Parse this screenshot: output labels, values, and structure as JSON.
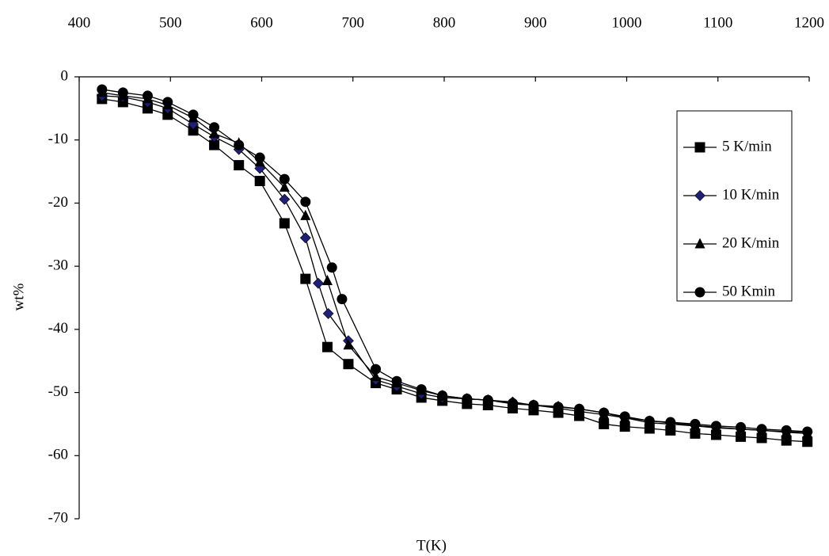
{
  "chart_data": {
    "type": "line",
    "x_label": "T(K)",
    "y_label": "wt%",
    "xlim": [
      400,
      1200
    ],
    "xticks": [
      400,
      500,
      600,
      700,
      800,
      900,
      1000,
      1100,
      1200
    ],
    "ylim": [
      -70,
      0
    ],
    "yticks": [
      0,
      -10,
      -20,
      -30,
      -40,
      -50,
      -60,
      -70
    ],
    "legend": "right",
    "series": [
      {
        "name": "5 K/min",
        "marker": "square",
        "color": "#000000",
        "x": [
          425,
          448,
          475,
          497,
          525,
          548,
          575,
          598,
          625,
          648,
          672,
          695,
          725,
          748,
          775,
          798,
          825,
          848,
          875,
          898,
          925,
          948,
          975,
          998,
          1025,
          1048,
          1075,
          1098,
          1125,
          1148,
          1175,
          1198
        ],
        "values": [
          -3.5,
          -4,
          -5,
          -6,
          -8.5,
          -10.8,
          -14,
          -16.5,
          -23.2,
          -32,
          -42.8,
          -45.5,
          -48.5,
          -49.5,
          -50.8,
          -51.3,
          -51.8,
          -52,
          -52.5,
          -52.8,
          -53.2,
          -53.7,
          -55,
          -55.4,
          -55.7,
          -56,
          -56.5,
          -56.7,
          -57,
          -57.2,
          -57.6,
          -57.8
        ]
      },
      {
        "name": "10 K/min",
        "marker": "diamond",
        "color": "#1f1f7a",
        "x": [
          425,
          448,
          475,
          497,
          525,
          548,
          575,
          598,
          625,
          648,
          662,
          673,
          695,
          725,
          748,
          775,
          798,
          825,
          848,
          875,
          898,
          925,
          948,
          975,
          998,
          1025,
          1048,
          1075,
          1098,
          1125,
          1148,
          1175,
          1198
        ],
        "values": [
          -3,
          -3.2,
          -4,
          -5,
          -7.5,
          -9.5,
          -11.5,
          -14.5,
          -19.4,
          -25.5,
          -32.7,
          -37.5,
          -41.8,
          -48,
          -49,
          -50.2,
          -50.8,
          -51,
          -51.2,
          -51.5,
          -52,
          -52.2,
          -52.6,
          -53.2,
          -54,
          -54.5,
          -54.8,
          -55.2,
          -55.5,
          -55.8,
          -56,
          -56.2,
          -56.3
        ]
      },
      {
        "name": "20 K/min",
        "marker": "triangle",
        "color": "#000000",
        "x": [
          425,
          448,
          475,
          497,
          525,
          548,
          575,
          598,
          625,
          648,
          672,
          695,
          725,
          748,
          775,
          798,
          825,
          848,
          875,
          898,
          925,
          948,
          975,
          998,
          1025,
          1048,
          1075,
          1098,
          1125,
          1148,
          1175,
          1198
        ],
        "values": [
          -2.5,
          -3,
          -3.5,
          -4.5,
          -6.5,
          -9,
          -10.5,
          -13.5,
          -17.5,
          -22,
          -32.3,
          -42.5,
          -47.5,
          -48.5,
          -49.7,
          -50.5,
          -51,
          -51.2,
          -51.8,
          -52,
          -52.5,
          -53,
          -53.5,
          -54,
          -54.8,
          -55,
          -55.3,
          -55.6,
          -55.8,
          -56,
          -56.3,
          -56.5
        ]
      },
      {
        "name": "50 Kmin",
        "marker": "circle",
        "color": "#000000",
        "x": [
          425,
          448,
          475,
          497,
          525,
          548,
          575,
          598,
          625,
          648,
          677,
          688,
          725,
          748,
          775,
          798,
          825,
          848,
          875,
          898,
          925,
          948,
          975,
          998,
          1025,
          1048,
          1075,
          1098,
          1125,
          1148,
          1175,
          1198
        ],
        "values": [
          -2,
          -2.5,
          -3,
          -4,
          -6,
          -8,
          -10.8,
          -12.8,
          -16.2,
          -19.8,
          -30.2,
          -35.2,
          -46.3,
          -48.2,
          -49.5,
          -50.5,
          -51,
          -51.2,
          -51.7,
          -52,
          -52.3,
          -52.6,
          -53.2,
          -53.8,
          -54.5,
          -54.7,
          -55,
          -55.3,
          -55.5,
          -55.8,
          -56,
          -56.2
        ]
      }
    ]
  }
}
